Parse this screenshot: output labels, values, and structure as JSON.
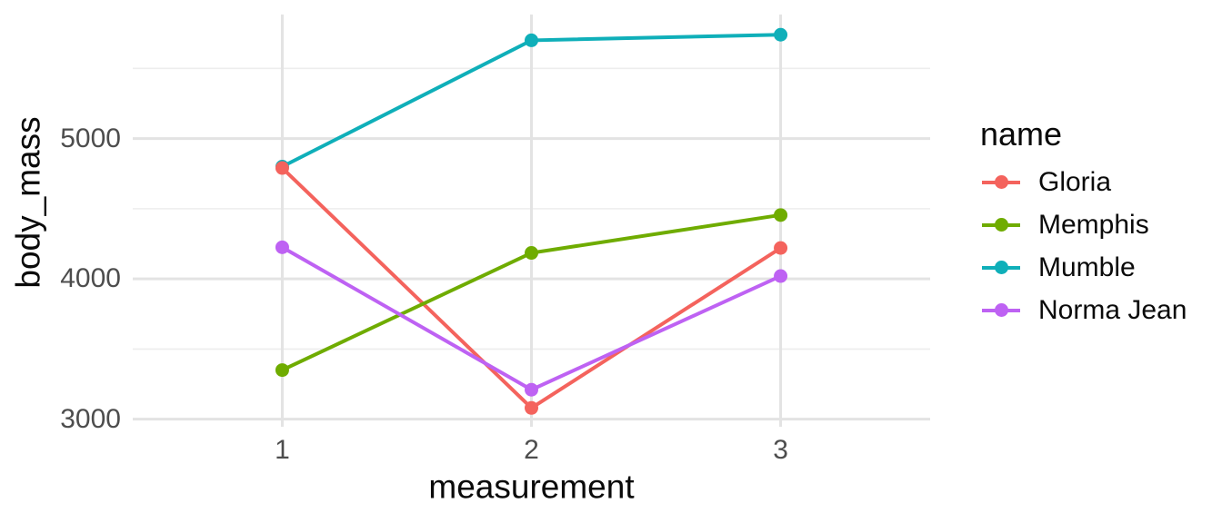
{
  "chart_data": {
    "type": "line",
    "title": "",
    "xlabel": "measurement",
    "ylabel": "body_mass",
    "x": [
      1,
      2,
      3
    ],
    "x_tick_labels": [
      "1",
      "2",
      "3"
    ],
    "y_ticks": [
      3000,
      4000,
      5000
    ],
    "y_tick_labels": [
      "3000",
      "4000",
      "5000"
    ],
    "y_minor_ticks": [
      3500,
      4500,
      5500
    ],
    "xlim": [
      0.4,
      3.6
    ],
    "ylim": [
      2946,
      5884
    ],
    "grid": "on",
    "series": [
      {
        "name": "Gloria",
        "color": "#f4635d",
        "values": [
          4790,
          3080,
          4220
        ]
      },
      {
        "name": "Memphis",
        "color": "#6fac00",
        "values": [
          3350,
          4185,
          4455
        ]
      },
      {
        "name": "Mumble",
        "color": "#0fafb9",
        "values": [
          4800,
          5700,
          5740
        ]
      },
      {
        "name": "Norma Jean",
        "color": "#be62f3",
        "values": [
          4225,
          3210,
          4020
        ]
      }
    ],
    "legend": {
      "title": "name",
      "position": "right"
    },
    "theme": {
      "background": "#ffffff",
      "grid_major_color": "#e3e3e3",
      "grid_minor_color": "#ededed",
      "tick_label_color": "#4d4d4d",
      "text_color": "#0a0a0a"
    }
  }
}
